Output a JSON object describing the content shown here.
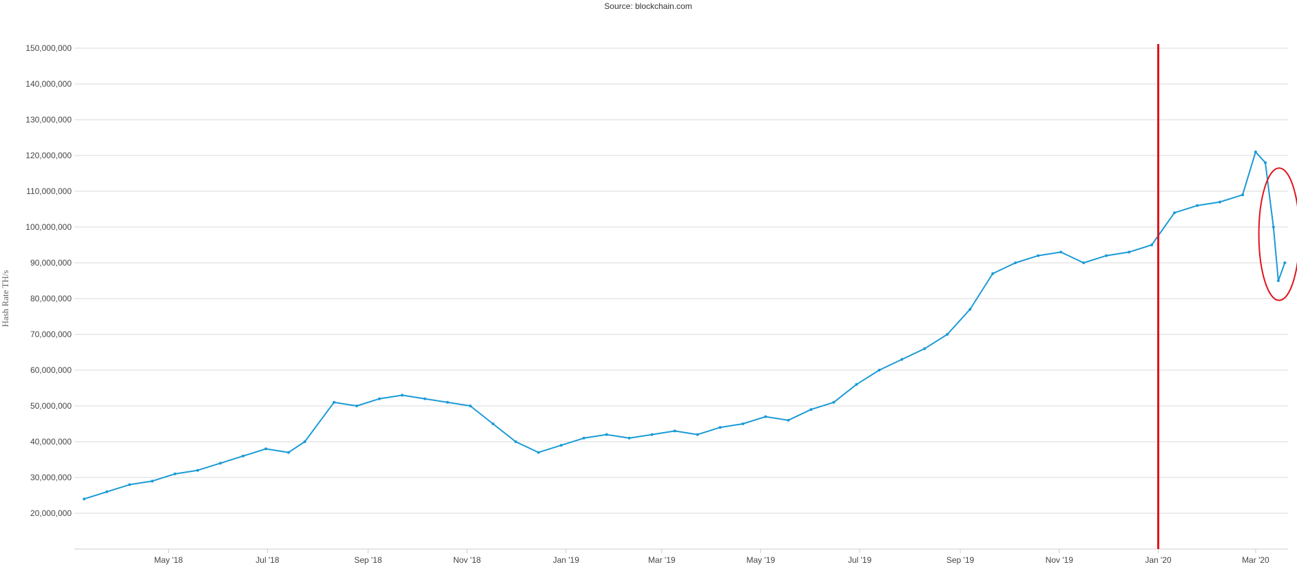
{
  "source_text": "Source: blockchain.com",
  "colors": {
    "series": "#1a9ad6",
    "marker_line": "#e0121a",
    "highlight_ellipse": "#e0121a",
    "grid": "#d8d8d8",
    "axis": "#cccccc"
  },
  "chart_data": {
    "type": "line",
    "title": "",
    "xlabel": "",
    "ylabel": "Hash Rate TH/s",
    "x_type": "date",
    "xlim": [
      "2018-03-04",
      "2020-03-21"
    ],
    "ylim": [
      10000000,
      150000000
    ],
    "grid": "horizontal",
    "yticks": [
      {
        "value": 20000000,
        "label": "20,000,000"
      },
      {
        "value": 30000000,
        "label": "30,000,000"
      },
      {
        "value": 40000000,
        "label": "40,000,000"
      },
      {
        "value": 50000000,
        "label": "50,000,000"
      },
      {
        "value": 60000000,
        "label": "60,000,000"
      },
      {
        "value": 70000000,
        "label": "70,000,000"
      },
      {
        "value": 80000000,
        "label": "80,000,000"
      },
      {
        "value": 90000000,
        "label": "90,000,000"
      },
      {
        "value": 100000000,
        "label": "100,000,000"
      },
      {
        "value": 110000000,
        "label": "110,000,000"
      },
      {
        "value": 120000000,
        "label": "120,000,000"
      },
      {
        "value": 130000000,
        "label": "130,000,000"
      },
      {
        "value": 140000000,
        "label": "140,000,000"
      },
      {
        "value": 150000000,
        "label": "150,000,000"
      }
    ],
    "xticks": [
      {
        "date": "2018-05-01",
        "label": "May '18"
      },
      {
        "date": "2018-07-01",
        "label": "Jul '18"
      },
      {
        "date": "2018-09-01",
        "label": "Sep '18"
      },
      {
        "date": "2018-11-01",
        "label": "Nov '18"
      },
      {
        "date": "2019-01-01",
        "label": "Jan '19"
      },
      {
        "date": "2019-03-01",
        "label": "Mar '19"
      },
      {
        "date": "2019-05-01",
        "label": "May '19"
      },
      {
        "date": "2019-07-01",
        "label": "Jul '19"
      },
      {
        "date": "2019-09-01",
        "label": "Sep '19"
      },
      {
        "date": "2019-11-01",
        "label": "Nov '19"
      },
      {
        "date": "2020-01-01",
        "label": "Jan '20"
      },
      {
        "date": "2020-03-01",
        "label": "Mar '20"
      }
    ],
    "annotations": [
      {
        "type": "vertical_line",
        "date": "2020-01-01"
      },
      {
        "type": "ellipse",
        "x_range": [
          "2020-03-03",
          "2020-03-28"
        ],
        "y_range": [
          79500000,
          116500000
        ]
      }
    ],
    "series": [
      {
        "x": [
          "2018-03-10",
          "2018-03-24",
          "2018-04-07",
          "2018-04-21",
          "2018-05-05",
          "2018-05-19",
          "2018-06-02",
          "2018-06-16",
          "2018-06-30",
          "2018-07-14",
          "2018-07-24",
          "2018-08-11",
          "2018-08-25",
          "2018-09-08",
          "2018-09-22",
          "2018-10-06",
          "2018-10-20",
          "2018-11-03",
          "2018-11-17",
          "2018-12-01",
          "2018-12-15",
          "2018-12-29",
          "2019-01-12",
          "2019-01-26",
          "2019-02-09",
          "2019-02-23",
          "2019-03-09",
          "2019-03-23",
          "2019-04-06",
          "2019-04-20",
          "2019-05-04",
          "2019-05-18",
          "2019-06-01",
          "2019-06-15",
          "2019-06-29",
          "2019-07-13",
          "2019-07-27",
          "2019-08-10",
          "2019-08-24",
          "2019-09-07",
          "2019-09-21",
          "2019-10-05",
          "2019-10-19",
          "2019-11-02",
          "2019-11-16",
          "2019-11-30",
          "2019-12-14",
          "2019-12-28",
          "2020-01-11",
          "2020-01-25",
          "2020-02-08",
          "2020-02-22",
          "2020-03-01",
          "2020-03-07",
          "2020-03-12",
          "2020-03-15",
          "2020-03-19"
        ],
        "y": [
          24000000,
          26000000,
          28000000,
          29000000,
          31000000,
          32000000,
          34000000,
          36000000,
          38000000,
          37000000,
          40000000,
          51000000,
          50000000,
          52000000,
          53000000,
          52000000,
          51000000,
          50000000,
          45000000,
          40000000,
          37000000,
          39000000,
          41000000,
          42000000,
          41000000,
          42000000,
          43000000,
          42000000,
          44000000,
          45000000,
          47000000,
          46000000,
          49000000,
          51000000,
          56000000,
          60000000,
          63000000,
          66000000,
          70000000,
          77000000,
          87000000,
          90000000,
          92000000,
          93000000,
          90000000,
          92000000,
          93000000,
          95000000,
          104000000,
          106000000,
          107000000,
          109000000,
          121000000,
          118000000,
          100000000,
          85000000,
          90000000
        ]
      }
    ]
  }
}
